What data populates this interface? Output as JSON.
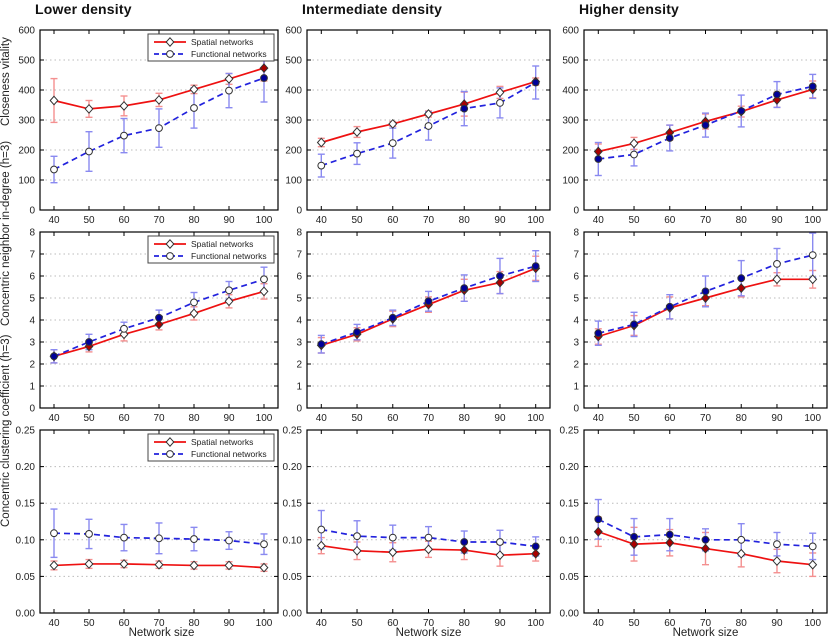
{
  "figure": {
    "column_titles": [
      "Lower density",
      "Intermediate density",
      "Higher density"
    ],
    "row_ylabels": [
      "Closeness vitality",
      "Concentric neighbor in-degree (h=3)",
      "Concentric clustering coefficient (h=3)"
    ],
    "xlabel": "Network size",
    "legend_labels": [
      "Spatial networks",
      "Functional networks"
    ]
  },
  "colors": {
    "spatial_line": "#ee1111",
    "functional_line": "#2222dd",
    "spatial_errorbar": "#f49090",
    "functional_errorbar": "#8a8af0",
    "marker_open_fill": "#ffffff",
    "marker_edge": "#333333",
    "spatial_filled": "#aa0000",
    "functional_filled": "#000099",
    "grid": "#bbbbbb",
    "axis": "#000000",
    "tick_text": "#222222"
  },
  "chart_data": [
    {
      "type": "line",
      "row": 0,
      "col": 0,
      "title": "Lower density",
      "ylabel": "Closeness vitality",
      "x": [
        40,
        50,
        60,
        70,
        80,
        90,
        100
      ],
      "xlim": [
        36,
        104
      ],
      "ylim": [
        0,
        600
      ],
      "ytick_step": 100,
      "ydecimals": 0,
      "grid": true,
      "legend": true,
      "legend_position": "top-right",
      "series": [
        {
          "name": "Spatial networks",
          "style": "solid",
          "marker": "diamond",
          "values": [
            365,
            337,
            347,
            367,
            402,
            437,
            473
          ],
          "errors": [
            73,
            28,
            33,
            22,
            14,
            18,
            43
          ],
          "filled": [
            false,
            false,
            false,
            false,
            false,
            false,
            true
          ]
        },
        {
          "name": "Functional networks",
          "style": "dashed",
          "marker": "circle",
          "values": [
            135,
            195,
            248,
            273,
            340,
            398,
            440
          ],
          "errors": [
            44,
            66,
            57,
            64,
            67,
            57,
            80
          ],
          "filled": [
            false,
            false,
            false,
            false,
            false,
            false,
            true
          ]
        }
      ]
    },
    {
      "type": "line",
      "row": 0,
      "col": 1,
      "title": "Intermediate density",
      "ylabel": "Closeness vitality",
      "x": [
        40,
        50,
        60,
        70,
        80,
        90,
        100
      ],
      "xlim": [
        36,
        104
      ],
      "ylim": [
        0,
        600
      ],
      "ytick_step": 100,
      "ydecimals": 0,
      "grid": true,
      "legend": false,
      "series": [
        {
          "name": "Spatial networks",
          "style": "solid",
          "marker": "diamond",
          "values": [
            225,
            260,
            287,
            320,
            353,
            392,
            428
          ],
          "errors": [
            14,
            18,
            8,
            10,
            40,
            20,
            12
          ],
          "filled": [
            false,
            false,
            false,
            false,
            true,
            false,
            true
          ]
        },
        {
          "name": "Functional networks",
          "style": "dashed",
          "marker": "circle",
          "values": [
            148,
            188,
            223,
            280,
            338,
            357,
            425
          ],
          "errors": [
            38,
            36,
            50,
            47,
            57,
            50,
            55
          ],
          "filled": [
            false,
            false,
            false,
            false,
            true,
            false,
            true
          ]
        }
      ]
    },
    {
      "type": "line",
      "row": 0,
      "col": 2,
      "title": "Higher density",
      "ylabel": "Closeness vitality",
      "x": [
        40,
        50,
        60,
        70,
        80,
        90,
        100
      ],
      "xlim": [
        36,
        104
      ],
      "ylim": [
        0,
        600
      ],
      "ytick_step": 100,
      "ydecimals": 0,
      "grid": true,
      "legend": false,
      "series": [
        {
          "name": "Spatial networks",
          "style": "solid",
          "marker": "diamond",
          "values": [
            195,
            222,
            258,
            295,
            328,
            367,
            402
          ],
          "errors": [
            25,
            20,
            25,
            25,
            18,
            25,
            28
          ],
          "filled": [
            true,
            false,
            true,
            true,
            true,
            true,
            true
          ]
        },
        {
          "name": "Functional networks",
          "style": "dashed",
          "marker": "circle",
          "values": [
            170,
            185,
            240,
            283,
            330,
            385,
            412
          ],
          "errors": [
            55,
            38,
            43,
            40,
            53,
            43,
            40
          ],
          "filled": [
            true,
            false,
            true,
            true,
            true,
            true,
            true
          ]
        }
      ]
    },
    {
      "type": "line",
      "row": 1,
      "col": 0,
      "title": "Lower density",
      "ylabel": "Concentric neighbor in-degree (h=3)",
      "x": [
        40,
        50,
        60,
        70,
        80,
        90,
        100
      ],
      "xlim": [
        36,
        104
      ],
      "ylim": [
        0,
        8
      ],
      "ytick_step": 1,
      "ydecimals": 0,
      "grid": true,
      "legend": true,
      "legend_position": "top-right",
      "series": [
        {
          "name": "Spatial networks",
          "style": "solid",
          "marker": "diamond",
          "values": [
            2.35,
            2.8,
            3.35,
            3.8,
            4.3,
            4.85,
            5.3
          ],
          "errors": [
            0.3,
            0.25,
            0.3,
            0.25,
            0.3,
            0.3,
            0.35
          ],
          "filled": [
            true,
            true,
            false,
            true,
            false,
            false,
            false
          ]
        },
        {
          "name": "Functional networks",
          "style": "dashed",
          "marker": "circle",
          "values": [
            2.35,
            3.0,
            3.6,
            4.1,
            4.8,
            5.35,
            5.85
          ],
          "errors": [
            0.3,
            0.35,
            0.3,
            0.35,
            0.45,
            0.4,
            0.55
          ],
          "filled": [
            true,
            true,
            false,
            true,
            false,
            false,
            false
          ]
        }
      ]
    },
    {
      "type": "line",
      "row": 1,
      "col": 1,
      "title": "Intermediate density",
      "ylabel": "Concentric neighbor in-degree (h=3)",
      "x": [
        40,
        50,
        60,
        70,
        80,
        90,
        100
      ],
      "xlim": [
        36,
        104
      ],
      "ylim": [
        0,
        8
      ],
      "ytick_step": 1,
      "ydecimals": 0,
      "grid": true,
      "legend": false,
      "series": [
        {
          "name": "Spatial networks",
          "style": "solid",
          "marker": "diamond",
          "values": [
            2.85,
            3.35,
            4.05,
            4.7,
            5.35,
            5.7,
            6.35
          ],
          "errors": [
            0.35,
            0.3,
            0.35,
            0.35,
            0.5,
            0.5,
            0.55
          ],
          "filled": [
            true,
            true,
            true,
            true,
            true,
            true,
            true
          ]
        },
        {
          "name": "Functional networks",
          "style": "dashed",
          "marker": "circle",
          "values": [
            2.9,
            3.45,
            4.1,
            4.85,
            5.45,
            6.0,
            6.45
          ],
          "errors": [
            0.4,
            0.35,
            0.35,
            0.45,
            0.6,
            0.8,
            0.7
          ],
          "filled": [
            true,
            true,
            true,
            true,
            true,
            true,
            true
          ]
        }
      ]
    },
    {
      "type": "line",
      "row": 1,
      "col": 2,
      "title": "Higher density",
      "ylabel": "Concentric neighbor in-degree (h=3)",
      "x": [
        40,
        50,
        60,
        70,
        80,
        90,
        100
      ],
      "xlim": [
        36,
        104
      ],
      "ylim": [
        0,
        8
      ],
      "ytick_step": 1,
      "ydecimals": 0,
      "grid": true,
      "legend": false,
      "series": [
        {
          "name": "Spatial networks",
          "style": "solid",
          "marker": "diamond",
          "values": [
            3.25,
            3.75,
            4.55,
            5.0,
            5.45,
            5.85,
            5.85
          ],
          "errors": [
            0.35,
            0.45,
            0.5,
            0.35,
            0.4,
            0.3,
            0.4
          ],
          "filled": [
            true,
            true,
            true,
            true,
            true,
            false,
            false
          ]
        },
        {
          "name": "Functional networks",
          "style": "dashed",
          "marker": "circle",
          "values": [
            3.4,
            3.8,
            4.6,
            5.3,
            5.9,
            6.55,
            6.95
          ],
          "errors": [
            0.55,
            0.55,
            0.55,
            0.7,
            0.8,
            0.7,
            1.0
          ],
          "filled": [
            true,
            true,
            true,
            true,
            true,
            false,
            false
          ]
        }
      ]
    },
    {
      "type": "line",
      "row": 2,
      "col": 0,
      "title": "Lower density",
      "ylabel": "Concentric clustering coefficient (h=3)",
      "x": [
        40,
        50,
        60,
        70,
        80,
        90,
        100
      ],
      "xlim": [
        36,
        104
      ],
      "ylim": [
        0,
        0.25
      ],
      "ytick_step": 0.05,
      "ydecimals": 2,
      "grid": true,
      "legend": true,
      "legend_position": "top-right",
      "xlabel": "Network size",
      "series": [
        {
          "name": "Spatial networks",
          "style": "solid",
          "marker": "diamond",
          "values": [
            0.065,
            0.067,
            0.067,
            0.066,
            0.065,
            0.065,
            0.062
          ],
          "errors": [
            0.006,
            0.006,
            0.005,
            0.005,
            0.005,
            0.005,
            0.005
          ],
          "filled": [
            false,
            false,
            false,
            false,
            false,
            false,
            false
          ]
        },
        {
          "name": "Functional networks",
          "style": "dashed",
          "marker": "circle",
          "values": [
            0.109,
            0.108,
            0.103,
            0.102,
            0.101,
            0.099,
            0.094
          ],
          "errors": [
            0.033,
            0.02,
            0.018,
            0.021,
            0.016,
            0.012,
            0.014
          ],
          "filled": [
            false,
            false,
            false,
            false,
            false,
            false,
            false
          ]
        }
      ]
    },
    {
      "type": "line",
      "row": 2,
      "col": 1,
      "title": "Intermediate density",
      "ylabel": "Concentric clustering coefficient (h=3)",
      "x": [
        40,
        50,
        60,
        70,
        80,
        90,
        100
      ],
      "xlim": [
        36,
        104
      ],
      "ylim": [
        0,
        0.25
      ],
      "ytick_step": 0.05,
      "ydecimals": 2,
      "grid": true,
      "legend": false,
      "xlabel": "Network size",
      "series": [
        {
          "name": "Spatial networks",
          "style": "solid",
          "marker": "diamond",
          "values": [
            0.092,
            0.085,
            0.083,
            0.087,
            0.086,
            0.079,
            0.081
          ],
          "errors": [
            0.011,
            0.012,
            0.013,
            0.011,
            0.013,
            0.015,
            0.01
          ],
          "filled": [
            false,
            false,
            false,
            false,
            true,
            false,
            true
          ]
        },
        {
          "name": "Functional networks",
          "style": "dashed",
          "marker": "circle",
          "values": [
            0.114,
            0.105,
            0.103,
            0.103,
            0.097,
            0.097,
            0.091
          ],
          "errors": [
            0.026,
            0.021,
            0.017,
            0.015,
            0.015,
            0.016,
            0.013
          ],
          "filled": [
            false,
            false,
            false,
            false,
            true,
            false,
            true
          ]
        }
      ]
    },
    {
      "type": "line",
      "row": 2,
      "col": 2,
      "title": "Higher density",
      "ylabel": "Concentric clustering coefficient (h=3)",
      "x": [
        40,
        50,
        60,
        70,
        80,
        90,
        100
      ],
      "xlim": [
        36,
        104
      ],
      "ylim": [
        0,
        0.25
      ],
      "ytick_step": 0.05,
      "ydecimals": 2,
      "grid": true,
      "legend": false,
      "xlabel": "Network size",
      "series": [
        {
          "name": "Spatial networks",
          "style": "solid",
          "marker": "diamond",
          "values": [
            0.111,
            0.094,
            0.096,
            0.088,
            0.081,
            0.071,
            0.066
          ],
          "errors": [
            0.02,
            0.023,
            0.018,
            0.022,
            0.018,
            0.016,
            0.016
          ],
          "filled": [
            true,
            true,
            true,
            true,
            false,
            false,
            false
          ]
        },
        {
          "name": "Functional networks",
          "style": "dashed",
          "marker": "circle",
          "values": [
            0.128,
            0.104,
            0.107,
            0.1,
            0.1,
            0.094,
            0.091
          ],
          "errors": [
            0.027,
            0.025,
            0.022,
            0.015,
            0.022,
            0.016,
            0.018
          ],
          "filled": [
            true,
            true,
            true,
            true,
            false,
            false,
            false
          ]
        }
      ]
    }
  ]
}
